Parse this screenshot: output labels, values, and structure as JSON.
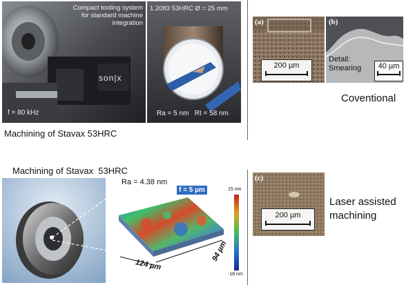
{
  "top_left": {
    "caption_left": "Compact tooling system for standard machine integration",
    "spec_right": "1.2083  53HRC  Ø = 25 mm",
    "freq_label": "f = 80 kHz",
    "brand": "son|x",
    "roughness": "Ra = 5 nm   Rt = 58 nm",
    "caption": "Machining of Stavax 53HRC"
  },
  "top_right": {
    "panel_a": "(a)",
    "panel_b": "(b)",
    "scale_a": "200 µm",
    "scale_b": "40 µm",
    "detail_label": "Detail: Smearing",
    "label": "Coventional"
  },
  "bottom_left": {
    "caption": "Machining of Stavax  53HRC",
    "ra_label": "Ra = 4.38 nm",
    "f_badge": "f = 5 µm",
    "colorbar_top": "15 nm",
    "colorbar_bottom": "-18 nm",
    "dim_x": "124 µm",
    "dim_y": "94 µm"
  },
  "bottom_right": {
    "panel_c": "(c)",
    "scale_c": "200 µm",
    "label": "Laser assisted machining"
  }
}
